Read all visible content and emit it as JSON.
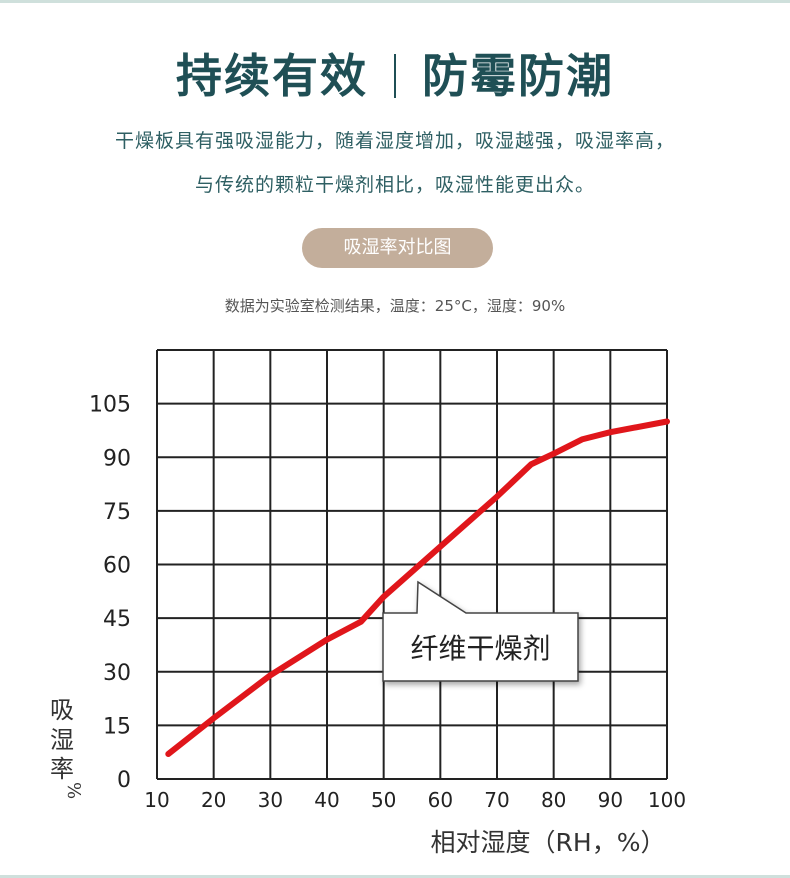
{
  "header": {
    "title_left": "持续有效",
    "title_right": "防霉防潮",
    "desc_line1": "干燥板具有强吸湿能力，随着湿度增加，吸湿越强，吸湿率高，",
    "desc_line2": "与传统的颗粒干燥剂相比，吸湿性能更出众。"
  },
  "badge": {
    "label": "吸湿率对比图"
  },
  "note": {
    "text": "数据为实验室检测结果，温度：25°C，湿度：90%"
  },
  "colors": {
    "title": "#1f4f55",
    "badge_bg": "#c3ae9b",
    "curve": "#e0161b",
    "grid": "#222222"
  },
  "chart_data": {
    "type": "line",
    "xlim": [
      10,
      100
    ],
    "ylim": [
      0,
      120
    ],
    "x_ticks": [
      "10",
      "20",
      "30",
      "40",
      "50",
      "60",
      "70",
      "80",
      "90",
      "100"
    ],
    "y_ticks": [
      "0",
      "15",
      "30",
      "45",
      "60",
      "75",
      "90",
      "105"
    ],
    "xlabel": "相对湿度（RH，%）",
    "ylabel": "吸湿率%",
    "grid": true,
    "series": [
      {
        "name": "纤维干燥剂",
        "x": [
          12,
          20,
          30,
          40,
          46,
          50,
          60,
          70,
          76,
          80,
          85,
          90,
          100
        ],
        "y": [
          7,
          17,
          29,
          39,
          44,
          51,
          65,
          79,
          88,
          91,
          95,
          97,
          100
        ]
      }
    ],
    "annotation": "纤维干燥剂"
  }
}
